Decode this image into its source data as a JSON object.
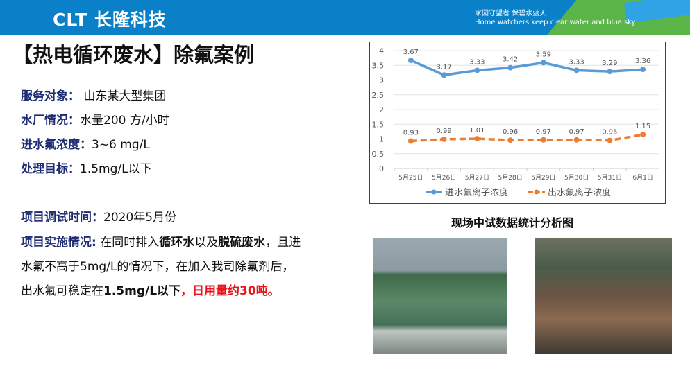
{
  "header": {
    "logo": "CLT 长隆科技",
    "slogan_cn": "家园守望者  保碧水蓝天",
    "slogan_en": "Home watchers keep clear water and blue sky"
  },
  "title": "【热电循环废水】除氟案例",
  "info": [
    {
      "label": "服务对象：",
      "value": " 山东某大型集团"
    },
    {
      "label": "水厂情况：",
      "value": "水量200 方/小时"
    },
    {
      "label": "进水氟浓度：",
      "value": "3~6 mg/L"
    },
    {
      "label": "处理目标：",
      "value": "1.5mg/L以下"
    },
    {
      "label": "项目调试时间：",
      "value": "2020年5月份"
    }
  ],
  "impl": {
    "label": "项目实施情况:",
    "t1": " 在同时排入",
    "b1": "循环水",
    "t2": "以及",
    "b2": "脱硫废水",
    "t3": "，且进",
    "line2": "水氟不高于5mg/L的情况下，在加入我司除氟剂后，",
    "t4": "出水氟可稳定在",
    "b3": "1.5mg/L以下",
    "red": "，日用量约30吨。"
  },
  "caption": "现场中试数据统计分析图",
  "chart_data": {
    "type": "line",
    "categories": [
      "5月25日",
      "5月26日",
      "5月27日",
      "5月28日",
      "5月29日",
      "5月30日",
      "5月31日",
      "6月1日"
    ],
    "series": [
      {
        "name": "进水氟离子浓度",
        "values": [
          3.67,
          3.17,
          3.33,
          3.42,
          3.59,
          3.33,
          3.29,
          3.36
        ],
        "color": "#5b9bd5",
        "style": "solid"
      },
      {
        "name": "出水氟离子浓度",
        "values": [
          0.93,
          0.99,
          1.01,
          0.96,
          0.97,
          0.97,
          0.95,
          1.15
        ],
        "color": "#ed7d31",
        "style": "dashed"
      }
    ],
    "ylim": [
      0,
      4
    ],
    "yticks": [
      0,
      0.5,
      1,
      1.5,
      2,
      2.5,
      3,
      3.5,
      4
    ],
    "grid": true,
    "legend": "bottom"
  }
}
